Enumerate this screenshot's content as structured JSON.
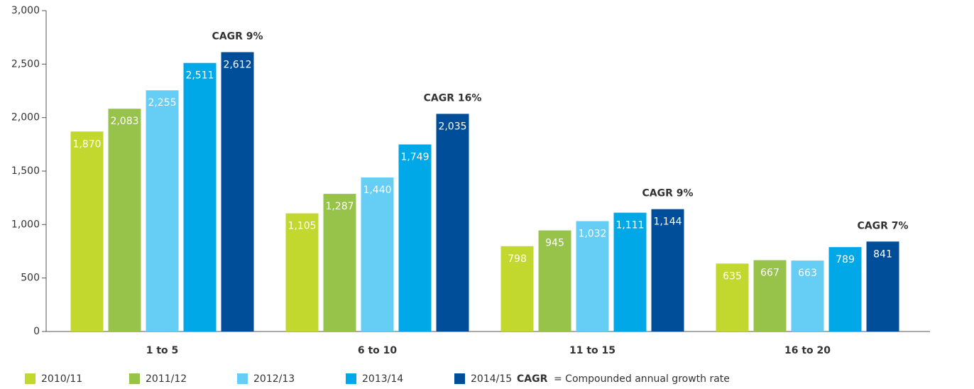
{
  "chart_data": {
    "type": "bar",
    "categories": [
      "1 to 5",
      "6 to 10",
      "11 to 15",
      "16 to 20"
    ],
    "series": [
      {
        "name": "2010/11",
        "color": "#c3d82f",
        "values": [
          1870,
          1105,
          798,
          635
        ],
        "value_labels": [
          "1,870",
          "1,105",
          "798",
          "635"
        ]
      },
      {
        "name": "2011/12",
        "color": "#98c34b",
        "values": [
          2083,
          1287,
          945,
          667
        ],
        "value_labels": [
          "2,083",
          "1,287",
          "945",
          "667"
        ]
      },
      {
        "name": "2012/13",
        "color": "#66cdf4",
        "values": [
          2255,
          1440,
          1032,
          663
        ],
        "value_labels": [
          "2,255",
          "1,440",
          "1,032",
          "663"
        ]
      },
      {
        "name": "2013/14",
        "color": "#00a8e7",
        "values": [
          2511,
          1749,
          1111,
          789
        ],
        "value_labels": [
          "2,511",
          "1,749",
          "1,111",
          "789"
        ]
      },
      {
        "name": "2014/15",
        "color": "#004d99",
        "values": [
          2612,
          2035,
          1144,
          841
        ],
        "value_labels": [
          "2,612",
          "2,035",
          "1,144",
          "841"
        ]
      }
    ],
    "annotations": [
      "CAGR 9%",
      "CAGR 16%",
      "CAGR 9%",
      "CAGR 7%"
    ],
    "legend_note": {
      "term": "CAGR",
      "text": "= Compounded annual growth rate"
    },
    "ylim": [
      0,
      3000
    ],
    "yticks": [
      0,
      500,
      {
        "value": 1000,
        "label": "1,000"
      },
      {
        "value": 1500,
        "label": "1,500"
      },
      {
        "value": 2000,
        "label": "2,000"
      },
      {
        "value": 2500,
        "label": "2,500"
      },
      {
        "value": 3000,
        "label": "3,000"
      }
    ],
    "legend": "bottom-left"
  }
}
